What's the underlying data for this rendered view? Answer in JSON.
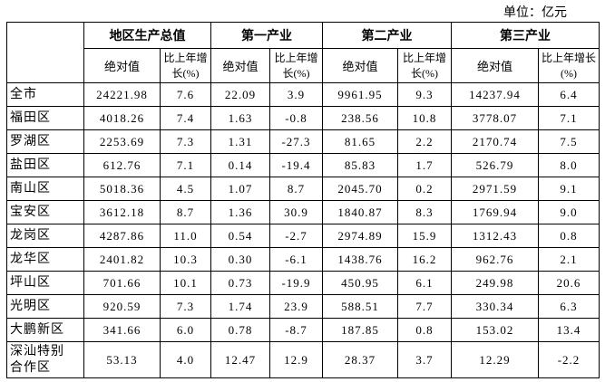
{
  "unit": "单位：亿元",
  "groups": [
    "地区生产总值",
    "第一产业",
    "第二产业",
    "第三产业"
  ],
  "subheaders": [
    "绝对值",
    "比上年增长(%)",
    "绝对值",
    "比上年增长(%)",
    "绝对值",
    "比上年增长(%)",
    "绝对值",
    "比上年增长(%)"
  ],
  "rows": [
    {
      "region": "全市",
      "values": [
        "24221.98",
        "7.6",
        "22.09",
        "3.9",
        "9961.95",
        "9.3",
        "14237.94",
        "6.4"
      ]
    },
    {
      "region": "福田区",
      "values": [
        "4018.26",
        "7.4",
        "1.63",
        "-0.8",
        "238.56",
        "10.8",
        "3778.07",
        "7.1"
      ]
    },
    {
      "region": "罗湖区",
      "values": [
        "2253.69",
        "7.3",
        "1.31",
        "-27.3",
        "81.65",
        "2.2",
        "2170.74",
        "7.5"
      ]
    },
    {
      "region": "盐田区",
      "values": [
        "612.76",
        "7.1",
        "0.14",
        "-19.4",
        "85.83",
        "1.7",
        "526.79",
        "8.0"
      ]
    },
    {
      "region": "南山区",
      "values": [
        "5018.36",
        "4.5",
        "1.07",
        "8.7",
        "2045.70",
        "0.2",
        "2971.59",
        "9.1"
      ]
    },
    {
      "region": "宝安区",
      "values": [
        "3612.18",
        "8.7",
        "1.36",
        "30.9",
        "1840.87",
        "8.3",
        "1769.94",
        "9.0"
      ]
    },
    {
      "region": "龙岗区",
      "values": [
        "4287.86",
        "11.0",
        "0.54",
        "-2.7",
        "2974.89",
        "15.9",
        "1312.43",
        "0.8"
      ]
    },
    {
      "region": "龙华区",
      "values": [
        "2401.82",
        "10.3",
        "0.30",
        "-6.1",
        "1438.76",
        "16.2",
        "962.76",
        "2.1"
      ]
    },
    {
      "region": "坪山区",
      "values": [
        "701.66",
        "10.1",
        "0.73",
        "-19.9",
        "450.95",
        "6.1",
        "249.98",
        "20.6"
      ]
    },
    {
      "region": "光明区",
      "values": [
        "920.59",
        "7.3",
        "1.74",
        "23.9",
        "588.51",
        "7.7",
        "330.34",
        "6.3"
      ]
    },
    {
      "region": "大鹏新区",
      "values": [
        "341.66",
        "6.0",
        "0.78",
        "-8.7",
        "187.85",
        "0.8",
        "153.02",
        "13.4"
      ]
    },
    {
      "region": "深汕特别合作区",
      "values": [
        "53.13",
        "4.0",
        "12.47",
        "12.9",
        "28.37",
        "3.7",
        "12.29",
        "-2.2"
      ]
    }
  ]
}
